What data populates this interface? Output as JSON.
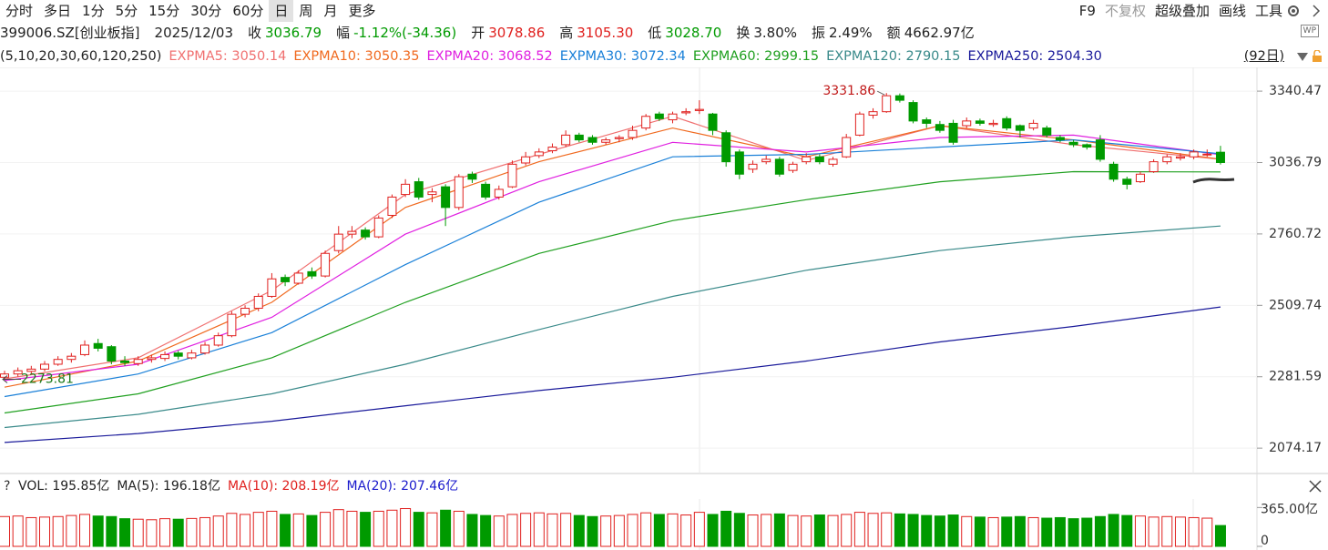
{
  "toolbar": {
    "periods": [
      "分时",
      "多日",
      "1分",
      "5分",
      "15分",
      "30分",
      "60分",
      "日",
      "周",
      "月",
      "更多"
    ],
    "selected": 7,
    "tools": [
      "F9",
      "不复权",
      "超级叠加",
      "画线",
      "工具"
    ],
    "muted_tool": 1
  },
  "quote": {
    "symbol": "399006.SZ[创业板指]",
    "date": "2025/12/03",
    "badge": "WP",
    "fields": [
      {
        "label": "收",
        "value": "3036.79",
        "color": "#009a00"
      },
      {
        "label": "幅",
        "value": "-1.12%(-34.36)",
        "color": "#009a00"
      },
      {
        "label": "开",
        "value": "3078.86",
        "color": "#e0201e"
      },
      {
        "label": "高",
        "value": "3105.30",
        "color": "#e0201e"
      },
      {
        "label": "低",
        "value": "3028.70",
        "color": "#009a00"
      },
      {
        "label": "换",
        "value": "3.80%",
        "color": "#222222"
      },
      {
        "label": "振",
        "value": "2.49%",
        "color": "#222222"
      },
      {
        "label": "额",
        "value": "4662.97亿",
        "color": "#222222"
      }
    ]
  },
  "indicator": {
    "params": "(5,10,20,30,60,120,250)",
    "range": "(92日)",
    "items": [
      "EXPMA5: 3050.14",
      "EXPMA10: 3050.35",
      "EXPMA20: 3068.52",
      "EXPMA30: 3072.34",
      "EXPMA60: 2999.15",
      "EXPMA120: 2790.15",
      "EXPMA250: 2504.30"
    ]
  },
  "volume_header": {
    "help": "?",
    "items": [
      {
        "text": "VOL: 195.85亿",
        "color": "#222222"
      },
      {
        "text": "MA(5): 196.18亿",
        "color": "#222222"
      },
      {
        "text": "MA(10): 208.19亿",
        "color": "#e0201e"
      },
      {
        "text": "MA(20): 207.46亿",
        "color": "#1a1acc"
      }
    ]
  },
  "chart_data": [
    {
      "type": "candlestick",
      "log_scale": true,
      "grid": true,
      "up_color": "#e0201e",
      "down_color": "#009a00",
      "ylim": [
        2010,
        3423
      ],
      "yticks": [
        3340.47,
        3036.79,
        2760.72,
        2509.74,
        2281.59,
        2074.17
      ],
      "candles": [
        [
          2280,
          2300,
          2273.81,
          2290
        ],
        [
          2290,
          2310,
          2282,
          2300
        ],
        [
          2298,
          2315,
          2290,
          2305
        ],
        [
          2305,
          2330,
          2298,
          2320
        ],
        [
          2320,
          2345,
          2315,
          2335
        ],
        [
          2335,
          2355,
          2325,
          2345
        ],
        [
          2350,
          2395,
          2345,
          2380
        ],
        [
          2385,
          2400,
          2360,
          2370
        ],
        [
          2375,
          2380,
          2320,
          2330
        ],
        [
          2330,
          2345,
          2315,
          2325
        ],
        [
          2322,
          2345,
          2315,
          2335
        ],
        [
          2335,
          2350,
          2325,
          2340
        ],
        [
          2338,
          2360,
          2330,
          2350
        ],
        [
          2355,
          2362,
          2335,
          2345
        ],
        [
          2340,
          2365,
          2335,
          2355
        ],
        [
          2355,
          2390,
          2350,
          2380
        ],
        [
          2380,
          2420,
          2375,
          2410
        ],
        [
          2410,
          2490,
          2405,
          2480
        ],
        [
          2480,
          2510,
          2470,
          2500
        ],
        [
          2500,
          2550,
          2490,
          2540
        ],
        [
          2540,
          2620,
          2535,
          2600
        ],
        [
          2605,
          2615,
          2575,
          2590
        ],
        [
          2585,
          2630,
          2580,
          2620
        ],
        [
          2625,
          2640,
          2600,
          2610
        ],
        [
          2610,
          2700,
          2605,
          2690
        ],
        [
          2700,
          2790,
          2690,
          2760
        ],
        [
          2760,
          2790,
          2745,
          2770
        ],
        [
          2775,
          2785,
          2740,
          2750
        ],
        [
          2750,
          2830,
          2745,
          2820
        ],
        [
          2830,
          2910,
          2820,
          2900
        ],
        [
          2910,
          2970,
          2900,
          2950
        ],
        [
          2960,
          2975,
          2890,
          2900
        ],
        [
          2910,
          2935,
          2880,
          2920
        ],
        [
          2940,
          2950,
          2790,
          2860
        ],
        [
          2860,
          2990,
          2850,
          2980
        ],
        [
          2990,
          3000,
          2955,
          2970
        ],
        [
          2950,
          2960,
          2890,
          2900
        ],
        [
          2900,
          2945,
          2890,
          2930
        ],
        [
          2940,
          3045,
          2935,
          3030
        ],
        [
          3035,
          3080,
          3025,
          3060
        ],
        [
          3065,
          3095,
          3055,
          3080
        ],
        [
          3085,
          3115,
          3075,
          3100
        ],
        [
          3110,
          3170,
          3100,
          3150
        ],
        [
          3150,
          3160,
          3120,
          3130
        ],
        [
          3140,
          3150,
          3110,
          3120
        ],
        [
          3120,
          3140,
          3110,
          3130
        ],
        [
          3135,
          3150,
          3120,
          3140
        ],
        [
          3140,
          3190,
          3130,
          3170
        ],
        [
          3180,
          3240,
          3170,
          3230
        ],
        [
          3240,
          3250,
          3210,
          3220
        ],
        [
          3215,
          3250,
          3200,
          3240
        ],
        [
          3245,
          3265,
          3235,
          3250
        ],
        [
          3255,
          3300,
          3240,
          3260
        ],
        [
          3240,
          3245,
          3150,
          3170
        ],
        [
          3160,
          3170,
          3020,
          3040
        ],
        [
          3080,
          3090,
          2970,
          2990
        ],
        [
          3010,
          3045,
          2995,
          3030
        ],
        [
          3040,
          3065,
          3030,
          3050
        ],
        [
          3050,
          3060,
          2980,
          2990
        ],
        [
          3005,
          3040,
          2995,
          3030
        ],
        [
          3040,
          3075,
          3030,
          3060
        ],
        [
          3060,
          3070,
          3030,
          3040
        ],
        [
          3030,
          3060,
          3020,
          3050
        ],
        [
          3060,
          3155,
          3055,
          3140
        ],
        [
          3150,
          3250,
          3145,
          3240
        ],
        [
          3235,
          3265,
          3220,
          3250
        ],
        [
          3250,
          3331.86,
          3245,
          3320
        ],
        [
          3320,
          3330,
          3290,
          3300
        ],
        [
          3290,
          3300,
          3200,
          3210
        ],
        [
          3215,
          3225,
          3180,
          3200
        ],
        [
          3195,
          3210,
          3160,
          3170
        ],
        [
          3200,
          3215,
          3110,
          3120
        ],
        [
          3190,
          3225,
          3180,
          3210
        ],
        [
          3210,
          3220,
          3190,
          3200
        ],
        [
          3195,
          3215,
          3185,
          3200
        ],
        [
          3220,
          3230,
          3170,
          3180
        ],
        [
          3190,
          3195,
          3140,
          3170
        ],
        [
          3180,
          3215,
          3170,
          3200
        ],
        [
          3180,
          3190,
          3140,
          3150
        ],
        [
          3140,
          3150,
          3120,
          3130
        ],
        [
          3120,
          3130,
          3100,
          3110
        ],
        [
          3110,
          3115,
          3090,
          3100
        ],
        [
          3130,
          3150,
          3040,
          3050
        ],
        [
          3030,
          3040,
          2960,
          2970
        ],
        [
          2970,
          2980,
          2930,
          2950
        ],
        [
          2960,
          3000,
          2955,
          2990
        ],
        [
          3000,
          3050,
          2995,
          3040
        ],
        [
          3040,
          3070,
          3030,
          3060
        ],
        [
          3055,
          3075,
          3045,
          3060
        ],
        [
          3060,
          3090,
          3050,
          3080
        ],
        [
          3070,
          3090,
          3060,
          3071.15
        ],
        [
          3078.86,
          3105.3,
          3028.7,
          3036.79
        ]
      ],
      "ema_x": [
        0,
        10,
        20,
        30,
        40,
        50,
        60,
        70,
        80,
        91
      ],
      "series": [
        {
          "name": "EXPMA5",
          "color": "#f07070",
          "values": [
            2275,
            2340,
            2560,
            2910,
            3070,
            3230,
            3045,
            3190,
            3110,
            3050.14
          ]
        },
        {
          "name": "EXPMA10",
          "color": "#f06a20",
          "values": [
            2250,
            2330,
            2520,
            2860,
            3040,
            3180,
            3060,
            3190,
            3130,
            3050.35
          ]
        },
        {
          "name": "EXPMA20",
          "color": "#e020e0",
          "values": [
            2270,
            2320,
            2470,
            2760,
            2960,
            3120,
            3080,
            3140,
            3150,
            3068.52
          ]
        },
        {
          "name": "EXPMA30",
          "color": "#1a80d8",
          "values": [
            2222,
            2290,
            2420,
            2650,
            2880,
            3060,
            3070,
            3100,
            3130,
            3072.34
          ]
        },
        {
          "name": "EXPMA60",
          "color": "#20a020",
          "values": [
            2174,
            2230,
            2340,
            2520,
            2690,
            2810,
            2890,
            2960,
            3000,
            2999.15
          ]
        },
        {
          "name": "EXPMA120",
          "color": "#3a8a8a",
          "values": [
            2132,
            2170,
            2230,
            2320,
            2430,
            2540,
            2630,
            2700,
            2750,
            2790.15
          ]
        },
        {
          "name": "EXPMA250",
          "color": "#1a1a9a",
          "values": [
            2090,
            2115,
            2150,
            2195,
            2240,
            2280,
            2330,
            2390,
            2440,
            2504.3
          ]
        }
      ]
    },
    {
      "type": "bar",
      "ylim": [
        0,
        445
      ],
      "yticks": [
        {
          "value": 365,
          "label": "365.00亿"
        },
        0
      ],
      "values": [
        280,
        285,
        270,
        275,
        280,
        290,
        300,
        285,
        280,
        260,
        255,
        250,
        260,
        255,
        262,
        270,
        285,
        310,
        300,
        320,
        330,
        300,
        305,
        290,
        320,
        345,
        330,
        320,
        330,
        340,
        355,
        320,
        315,
        340,
        330,
        300,
        290,
        285,
        300,
        310,
        315,
        305,
        310,
        290,
        280,
        285,
        290,
        300,
        315,
        300,
        305,
        295,
        320,
        300,
        330,
        310,
        295,
        300,
        305,
        290,
        285,
        295,
        290,
        300,
        320,
        310,
        315,
        305,
        300,
        290,
        285,
        295,
        280,
        275,
        270,
        275,
        280,
        270,
        265,
        270,
        260,
        265,
        280,
        300,
        290,
        285,
        275,
        280,
        275,
        270,
        265,
        195.85
      ]
    }
  ]
}
